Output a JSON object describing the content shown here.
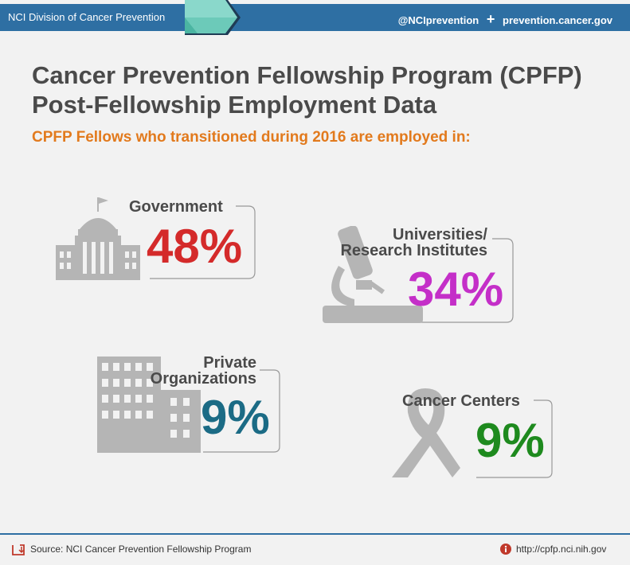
{
  "header": {
    "org": "NCI Division of Cancer Prevention",
    "twitter": "@NCIprevention",
    "plus": "+",
    "site": "prevention.cancer.gov"
  },
  "title_line1": "Cancer Prevention Fellowship Program (CPFP)",
  "title_line2": "Post-Fellowship Employment Data",
  "subtitle": "CPFP Fellows who transitioned during 2016 are employed in:",
  "sectors": [
    {
      "label": "Government",
      "value": "48%",
      "color": "#d42a2a",
      "icon": "capitol-icon"
    },
    {
      "label1": "Universities/",
      "label2": "Research Institutes",
      "value": "34%",
      "color": "#c42fc8",
      "icon": "microscope-icon"
    },
    {
      "label1": "Private",
      "label2": "Organizations",
      "value": "9%",
      "color": "#1b6b85",
      "icon": "office-buildings-icon"
    },
    {
      "label": "Cancer Centers",
      "value": "9%",
      "color": "#1e8a1e",
      "icon": "ribbon-icon"
    }
  ],
  "footer": {
    "source": "Source: NCI Cancer Prevention Fellowship Program",
    "url": "http://cpfp.nci.nih.gov"
  },
  "chart_data": {
    "type": "table",
    "title": "Post-Fellowship Employment Data",
    "categories": [
      "Government",
      "Universities/Research Institutes",
      "Private Organizations",
      "Cancer Centers"
    ],
    "values": [
      48,
      34,
      9,
      9
    ],
    "unit": "%"
  }
}
